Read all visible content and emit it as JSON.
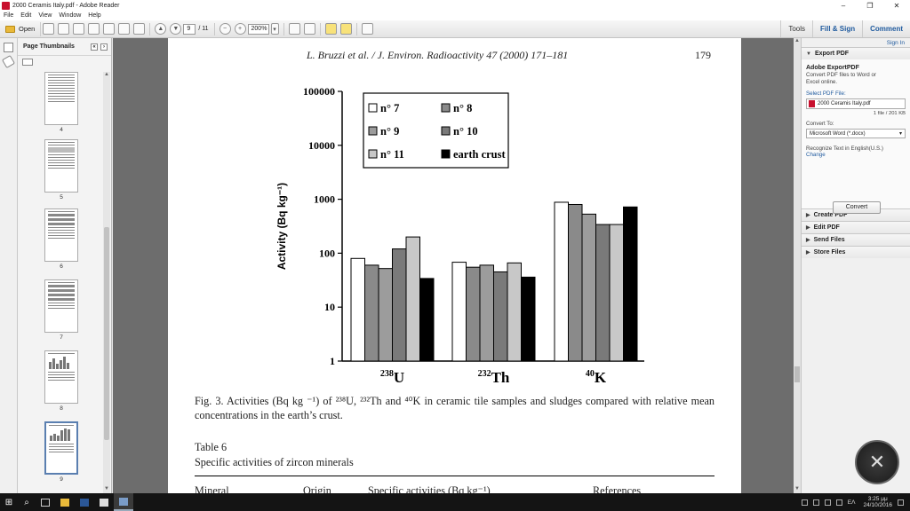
{
  "window": {
    "title": "2000 Ceramis Italy.pdf - Adobe Reader",
    "controls": [
      "–",
      "❐",
      "✕"
    ]
  },
  "menu": [
    "File",
    "Edit",
    "View",
    "Window",
    "Help"
  ],
  "toolbar": {
    "open_label": "Open",
    "page_current": "9",
    "page_total": "/ 11",
    "zoom": "200%",
    "tools": "Tools",
    "fill_sign": "Fill & Sign",
    "comment": "Comment"
  },
  "thumbnails": {
    "title": "Page Thumbnails",
    "pages": [
      "4",
      "5",
      "6",
      "7",
      "8",
      "9"
    ]
  },
  "document": {
    "running_head": "L. Bruzzi et al. / J. Environ. Radioactivity 47 (2000) 171–181",
    "page_number": "179",
    "caption": "Fig. 3. Activities (Bq kg ⁻¹) of ²³⁸U, ²³²Th and ⁴⁰K in ceramic tile samples and sludges compared with relative mean concentrations in the earth’s crust.",
    "table_title": "Table 6",
    "table_subtitle": "Specific activities of zircon minerals",
    "table_headers": [
      "Mineral",
      "Origin",
      "Specific activities (Bq kg⁻¹)",
      "References"
    ]
  },
  "chart_data": {
    "type": "bar",
    "scale": "log",
    "ylabel": "Activity (Bq kg⁻¹)",
    "ylim": [
      1,
      100000
    ],
    "yticks": [
      "1",
      "10",
      "100",
      "1000",
      "10000",
      "100000"
    ],
    "categories": [
      {
        "sup": "238",
        "base": "U"
      },
      {
        "sup": "232",
        "base": "Th"
      },
      {
        "sup": "40",
        "base": "K"
      }
    ],
    "series": [
      {
        "name": "n° 7",
        "color": "#ffffff",
        "values": [
          80,
          68,
          880
        ]
      },
      {
        "name": "n° 8",
        "color": "#8a8a8a",
        "values": [
          60,
          55,
          800
        ]
      },
      {
        "name": "n° 9",
        "color": "#9c9c9c",
        "values": [
          52,
          60,
          530
        ]
      },
      {
        "name": "n° 10",
        "color": "#7a7a7a",
        "values": [
          120,
          45,
          340
        ]
      },
      {
        "name": "n° 11",
        "color": "#c8c8c8",
        "values": [
          200,
          66,
          340
        ]
      },
      {
        "name": "earth crust",
        "color": "#000000",
        "values": [
          34,
          36,
          720
        ]
      }
    ],
    "legend_position": "top-left"
  },
  "right_panel": {
    "sign_in": "Sign In",
    "export_pdf": "Export PDF",
    "adobe_export_title": "Adobe ExportPDF",
    "adobe_export_desc": "Convert PDF files to Word or Excel online.",
    "select_label": "Select PDF File:",
    "file_name": "2000 Ceramis Italy.pdf",
    "file_info": "1 file / 201 KB",
    "convert_to_label": "Convert To:",
    "convert_to_value": "Microsoft Word (*.docx)",
    "recognize": "Recognize Text in English(U.S.)",
    "change": "Change",
    "convert_button": "Convert",
    "sections": [
      "Create PDF",
      "Edit PDF",
      "Send Files",
      "Store Files"
    ]
  },
  "taskbar": {
    "language": "ΕΛ",
    "time": "3:25 μμ",
    "date": "24/10/2016"
  }
}
